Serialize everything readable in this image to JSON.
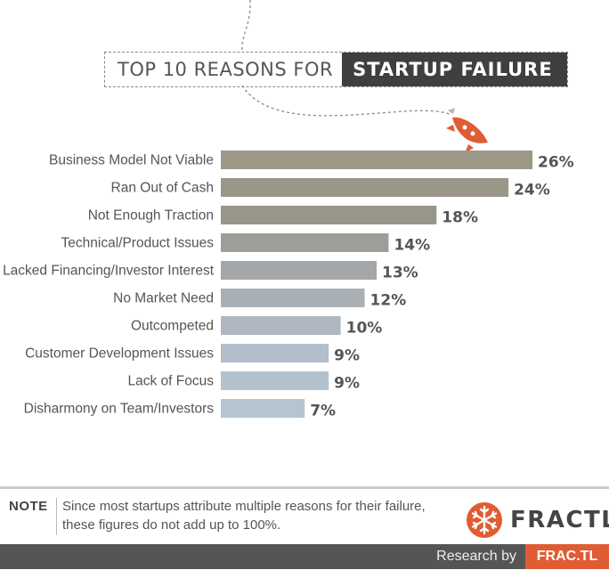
{
  "title": {
    "prefix": "TOP 10 REASONS FOR",
    "highlight": "STARTUP FAILURE"
  },
  "chart_data": {
    "type": "bar",
    "orientation": "horizontal",
    "categories": [
      "Business Model Not Viable",
      "Ran Out of Cash",
      "Not Enough Traction",
      "Technical/Product Issues",
      "Lacked Financing/Investor Interest",
      "No Market Need",
      "Outcompeted",
      "Customer Development Issues",
      "Lack of Focus",
      "Disharmony on Team/Investors"
    ],
    "values": [
      26,
      24,
      18,
      14,
      13,
      12,
      10,
      9,
      9,
      7
    ],
    "value_labels": [
      "26%",
      "24%",
      "18%",
      "14%",
      "13%",
      "12%",
      "10%",
      "9%",
      "9%",
      "7%"
    ],
    "unit": "%",
    "bar_colors": [
      "#9c9787",
      "#9a9688",
      "#989688",
      "#9d9e98",
      "#a3a7a9",
      "#a9b0b5",
      "#afb8c0",
      "#b2bec9",
      "#b3c1cd",
      "#b5c4d0"
    ],
    "value_label_color": "#555555",
    "grid": false,
    "legend": "none"
  },
  "note": {
    "label": "NOTE",
    "text": "Since most startups attribute multiple reasons for their failure, these figures do not add up to 100%."
  },
  "brand": {
    "name": "FRACTL",
    "icon": "snowflake-icon",
    "color": "#e05c33"
  },
  "footer": {
    "research_by": "Research by",
    "badge": "FRAC.TL"
  },
  "rocket": {
    "icon": "rocket-icon",
    "color": "#e05c33"
  }
}
